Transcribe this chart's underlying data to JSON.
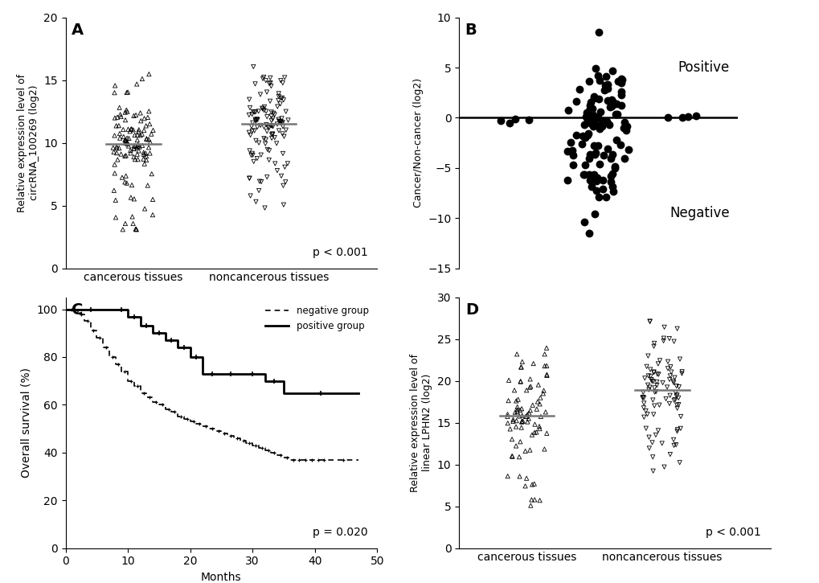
{
  "panel_A": {
    "label": "A",
    "group1_name": "cancerous tissues",
    "group2_name": "noncancerous tissues",
    "group1_median": 9.7,
    "group2_median": 11.5,
    "ylabel": "Relative expression level of\ncircRNA_100269 (log2)",
    "ylim": [
      0,
      20
    ],
    "yticks": [
      0,
      5,
      10,
      15,
      20
    ],
    "pvalue": "p < 0.001"
  },
  "panel_B": {
    "label": "B",
    "ylabel": "Cancer/Non-cancer (log2)",
    "ylim": [
      -15,
      10
    ],
    "yticks": [
      -15,
      -10,
      -5,
      0,
      5,
      10
    ],
    "text_positive": "Positive",
    "text_negative": "Negative"
  },
  "panel_C": {
    "label": "C",
    "xlabel": "Months",
    "ylabel": "Overall survival (%)",
    "ylim": [
      0,
      105
    ],
    "yticks": [
      0,
      20,
      40,
      60,
      80,
      100
    ],
    "xlim": [
      0,
      50
    ],
    "xticks": [
      0,
      10,
      20,
      30,
      40,
      50
    ],
    "pvalue": "p = 0.020",
    "legend_neg": "negative group",
    "legend_pos": "positive group",
    "positive_times": [
      0,
      8,
      10,
      12,
      14,
      16,
      18,
      20,
      22,
      25,
      28,
      32,
      35,
      47
    ],
    "positive_surv": [
      100,
      100,
      97,
      93,
      90,
      87,
      84,
      80,
      73,
      73,
      73,
      70,
      65,
      65
    ],
    "positive_censor_times": [
      9,
      11,
      13,
      15,
      17,
      19,
      21,
      23,
      26,
      30,
      33,
      36,
      38,
      40,
      42,
      43,
      44,
      45,
      46
    ],
    "positive_censor_vals": [
      100,
      97,
      93,
      90,
      87,
      84,
      80,
      73,
      73,
      73,
      70,
      65,
      65,
      65,
      65,
      65,
      65,
      65,
      65
    ],
    "negative_times": [
      0,
      2,
      3,
      4,
      5,
      6,
      7,
      8,
      9,
      10,
      11,
      12,
      13,
      14,
      15,
      16,
      17,
      18,
      19,
      20,
      21,
      22,
      23,
      24,
      25,
      26,
      27,
      28,
      29,
      30,
      31,
      32,
      33,
      34,
      35,
      36,
      37,
      38,
      39,
      40,
      41,
      42,
      47
    ],
    "negative_surv": [
      100,
      98,
      95,
      91,
      88,
      84,
      80,
      77,
      74,
      70,
      68,
      65,
      63,
      61,
      60,
      58,
      57,
      55,
      54,
      53,
      52,
      51,
      50,
      49,
      48,
      47,
      46,
      45,
      44,
      43,
      42,
      41,
      40,
      39,
      38,
      37,
      37,
      37,
      37,
      37,
      37,
      37,
      37
    ]
  },
  "panel_D": {
    "label": "D",
    "group1_name": "cancerous tissues",
    "group2_name": "noncancerous tissues",
    "group1_median": 16.0,
    "group2_median": 18.8,
    "ylabel": "Relative expression level of\nlinear LPHN2 (log2)",
    "ylim": [
      0,
      30
    ],
    "yticks": [
      0,
      5,
      10,
      15,
      20,
      25,
      30
    ],
    "pvalue": "p < 0.001"
  },
  "bg_color": "#ffffff",
  "marker_color": "#000000"
}
